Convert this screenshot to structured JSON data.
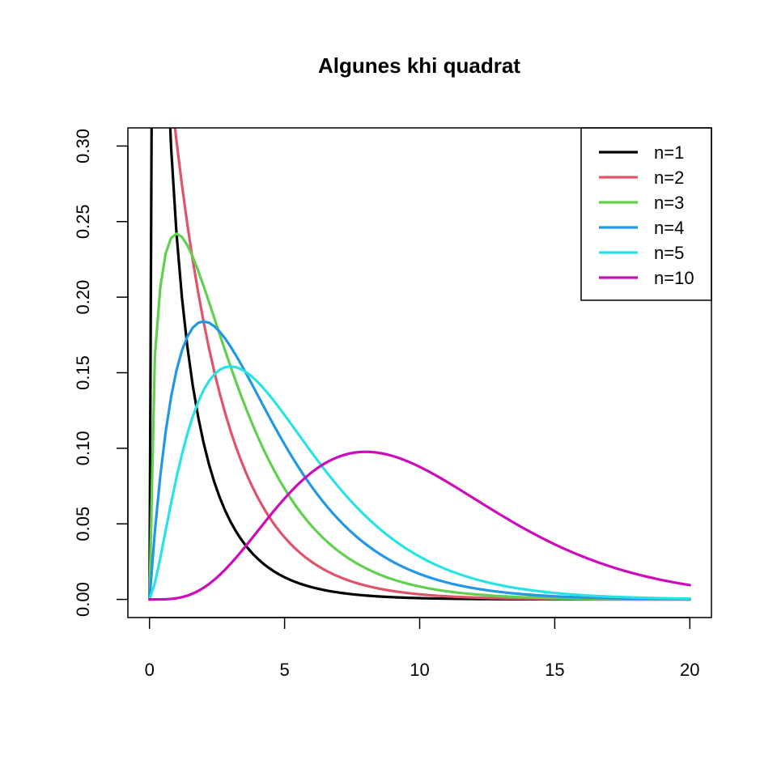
{
  "chart_data": {
    "type": "line",
    "title": "Algunes khi quadrat",
    "xlabel": "",
    "ylabel": "",
    "xlim": [
      -0.8,
      20.8
    ],
    "ylim": [
      -0.012,
      0.312
    ],
    "x_ticks": [
      0,
      5,
      10,
      15,
      20
    ],
    "x_tick_labels": [
      "0",
      "5",
      "10",
      "15",
      "20"
    ],
    "y_ticks": [
      0,
      0.05,
      0.1,
      0.15,
      0.2,
      0.25,
      0.3
    ],
    "y_tick_labels": [
      "0.00",
      "0.05",
      "0.10",
      "0.15",
      "0.20",
      "0.25",
      "0.30"
    ],
    "grid": false,
    "legend_position": "top-right",
    "function": "chi-squared density",
    "x_range": [
      0,
      20
    ],
    "series": [
      {
        "name": "n=1",
        "df": 1,
        "color": "#000000"
      },
      {
        "name": "n=2",
        "df": 2,
        "color": "#DF536B"
      },
      {
        "name": "n=3",
        "df": 3,
        "color": "#61D04F"
      },
      {
        "name": "n=4",
        "df": 4,
        "color": "#2297E6"
      },
      {
        "name": "n=5",
        "df": 5,
        "color": "#28E2E5"
      },
      {
        "name": "n=10",
        "df": 10,
        "color": "#CD0BBC"
      }
    ]
  }
}
